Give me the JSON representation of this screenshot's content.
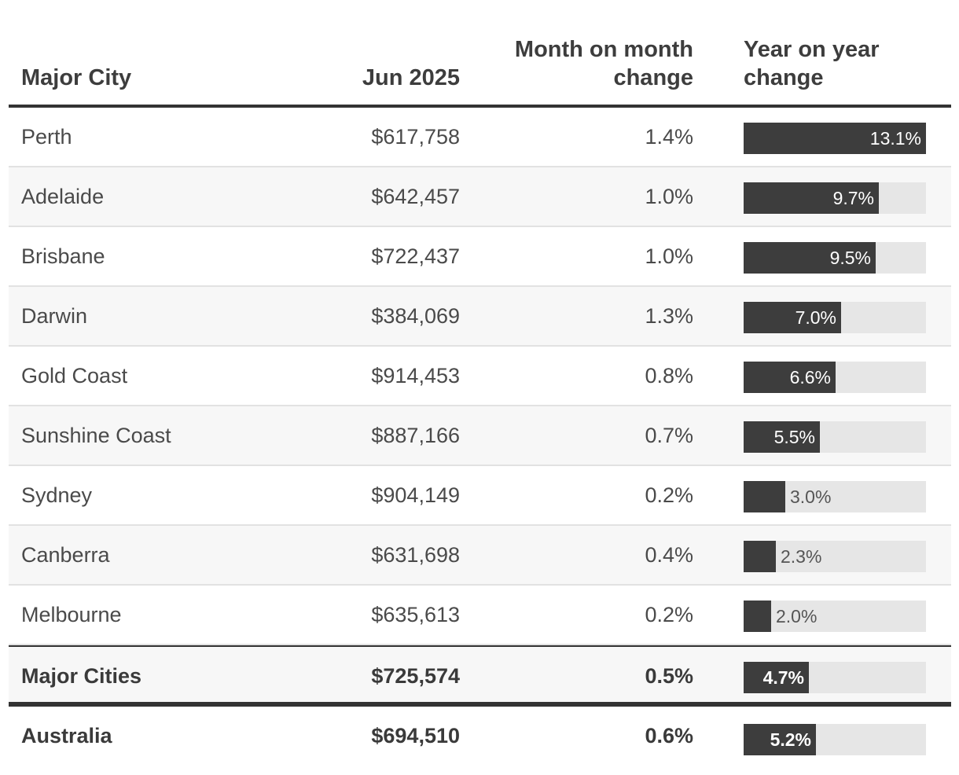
{
  "header": {
    "city": "Major City",
    "value": "Jun 2025",
    "mom": "Month on month change",
    "yoy": "Year on year change"
  },
  "chart_data": {
    "type": "table",
    "columns": [
      "Major City",
      "Jun 2025",
      "Month on month change",
      "Year on year change"
    ],
    "bar_max": 13.1,
    "rows": [
      {
        "city": "Perth",
        "value": "$617,758",
        "mom": "1.4%",
        "yoy": "13.1%",
        "yoy_num": 13.1
      },
      {
        "city": "Adelaide",
        "value": "$642,457",
        "mom": "1.0%",
        "yoy": "9.7%",
        "yoy_num": 9.7
      },
      {
        "city": "Brisbane",
        "value": "$722,437",
        "mom": "1.0%",
        "yoy": "9.5%",
        "yoy_num": 9.5
      },
      {
        "city": "Darwin",
        "value": "$384,069",
        "mom": "1.3%",
        "yoy": "7.0%",
        "yoy_num": 7.0
      },
      {
        "city": "Gold Coast",
        "value": "$914,453",
        "mom": "0.8%",
        "yoy": "6.6%",
        "yoy_num": 6.6
      },
      {
        "city": "Sunshine Coast",
        "value": "$887,166",
        "mom": "0.7%",
        "yoy": "5.5%",
        "yoy_num": 5.5
      },
      {
        "city": "Sydney",
        "value": "$904,149",
        "mom": "0.2%",
        "yoy": "3.0%",
        "yoy_num": 3.0
      },
      {
        "city": "Canberra",
        "value": "$631,698",
        "mom": "0.4%",
        "yoy": "2.3%",
        "yoy_num": 2.3
      },
      {
        "city": "Melbourne",
        "value": "$635,613",
        "mom": "0.2%",
        "yoy": "2.0%",
        "yoy_num": 2.0
      }
    ],
    "total": {
      "city": "Major Cities",
      "value": "$725,574",
      "mom": "0.5%",
      "yoy": "4.7%",
      "yoy_num": 4.7
    },
    "final": {
      "city": "Australia",
      "value": "$694,510",
      "mom": "0.6%",
      "yoy": "5.2%",
      "yoy_num": 5.2
    }
  }
}
